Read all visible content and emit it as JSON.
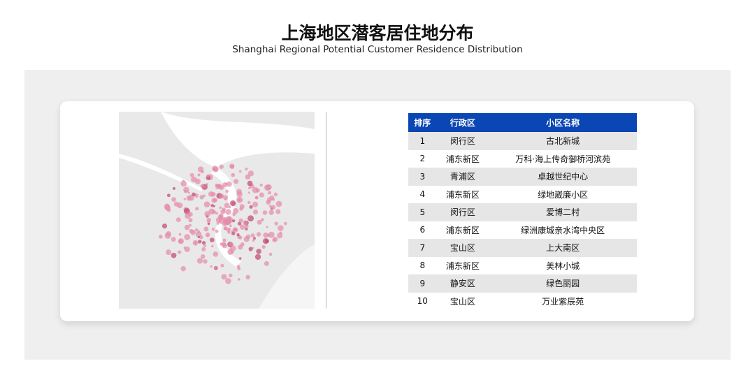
{
  "header": {
    "title": "上海地区潜客居住地分布",
    "subtitle": "Shanghai Regional Potential Customer Residence Distribution"
  },
  "table": {
    "columns": [
      "排序",
      "行政区",
      "小区名称"
    ],
    "rows": [
      [
        "1",
        "闵行区",
        "古北新城"
      ],
      [
        "2",
        "浦东新区",
        "万科·海上传奇御桥河滨苑"
      ],
      [
        "3",
        "青浦区",
        "卓越世纪中心"
      ],
      [
        "4",
        "浦东新区",
        "绿地崴廉小区"
      ],
      [
        "5",
        "闵行区",
        "爱博二村"
      ],
      [
        "6",
        "浦东新区",
        "绿洲康城亲水湾中央区"
      ],
      [
        "7",
        "宝山区",
        "上大南区"
      ],
      [
        "8",
        "浦东新区",
        "美林小城"
      ],
      [
        "9",
        "静安区",
        "绿色丽园"
      ],
      [
        "10",
        "宝山区",
        "万业紫辰苑"
      ]
    ]
  }
}
